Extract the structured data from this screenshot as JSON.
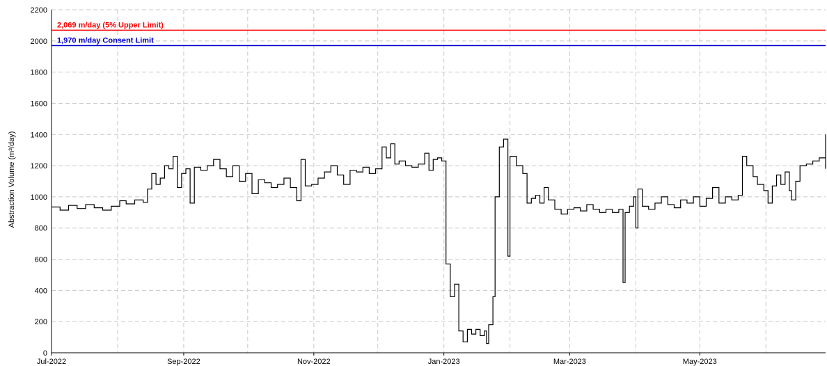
{
  "chart_data": {
    "type": "line",
    "ylabel": "Abstraction Volume (m³/day)",
    "ylim": [
      0,
      2200
    ],
    "yticks": [
      0,
      200,
      400,
      600,
      800,
      1000,
      1200,
      1400,
      1600,
      1800,
      2000,
      2200
    ],
    "xlim": [
      "2022-07-01",
      "2023-06-29"
    ],
    "xticks": [
      {
        "date": "2022-07-01",
        "label": "Jul-2022"
      },
      {
        "date": "2022-09-01",
        "label": "Sep-2022"
      },
      {
        "date": "2022-11-01",
        "label": "Nov-2022"
      },
      {
        "date": "2023-01-01",
        "label": "Jan-2023"
      },
      {
        "date": "2023-03-01",
        "label": "Mar-2023"
      },
      {
        "date": "2023-05-01",
        "label": "May-2023"
      }
    ],
    "grid": true,
    "grid_style": "dashed",
    "reference_lines": [
      {
        "value": 2069,
        "label": "2,069 m/day (5% Upper Limit)",
        "color": "#ff0000"
      },
      {
        "value": 1970,
        "label": "1,970 m/day Consent Limit",
        "color": "#0000cc"
      }
    ],
    "series": [
      {
        "color": "#000000",
        "step": true,
        "points": [
          [
            "2022-07-01",
            935
          ],
          [
            "2022-07-05",
            915
          ],
          [
            "2022-07-09",
            945
          ],
          [
            "2022-07-13",
            925
          ],
          [
            "2022-07-17",
            950
          ],
          [
            "2022-07-21",
            930
          ],
          [
            "2022-07-25",
            915
          ],
          [
            "2022-07-29",
            940
          ],
          [
            "2022-08-02",
            975
          ],
          [
            "2022-08-05",
            955
          ],
          [
            "2022-08-09",
            980
          ],
          [
            "2022-08-13",
            965
          ],
          [
            "2022-08-15",
            1050
          ],
          [
            "2022-08-17",
            1150
          ],
          [
            "2022-08-19",
            1080
          ],
          [
            "2022-08-21",
            1120
          ],
          [
            "2022-08-23",
            1200
          ],
          [
            "2022-08-25",
            1180
          ],
          [
            "2022-08-27",
            1260
          ],
          [
            "2022-08-29",
            1060
          ],
          [
            "2022-08-31",
            1150
          ],
          [
            "2022-09-02",
            1180
          ],
          [
            "2022-09-04",
            960
          ],
          [
            "2022-09-06",
            1190
          ],
          [
            "2022-09-09",
            1170
          ],
          [
            "2022-09-12",
            1200
          ],
          [
            "2022-09-15",
            1240
          ],
          [
            "2022-09-18",
            1180
          ],
          [
            "2022-09-21",
            1130
          ],
          [
            "2022-09-24",
            1200
          ],
          [
            "2022-09-27",
            1100
          ],
          [
            "2022-09-30",
            1150
          ],
          [
            "2022-10-03",
            1020
          ],
          [
            "2022-10-06",
            1110
          ],
          [
            "2022-10-09",
            1090
          ],
          [
            "2022-10-12",
            1060
          ],
          [
            "2022-10-15",
            1080
          ],
          [
            "2022-10-18",
            1120
          ],
          [
            "2022-10-21",
            1060
          ],
          [
            "2022-10-24",
            975
          ],
          [
            "2022-10-26",
            1240
          ],
          [
            "2022-10-28",
            1070
          ],
          [
            "2022-10-31",
            1080
          ],
          [
            "2022-11-03",
            1120
          ],
          [
            "2022-11-06",
            1160
          ],
          [
            "2022-11-09",
            1200
          ],
          [
            "2022-11-12",
            1140
          ],
          [
            "2022-11-15",
            1080
          ],
          [
            "2022-11-18",
            1170
          ],
          [
            "2022-11-21",
            1160
          ],
          [
            "2022-11-24",
            1190
          ],
          [
            "2022-11-27",
            1150
          ],
          [
            "2022-11-30",
            1180
          ],
          [
            "2022-12-03",
            1320
          ],
          [
            "2022-12-05",
            1250
          ],
          [
            "2022-12-07",
            1340
          ],
          [
            "2022-12-09",
            1210
          ],
          [
            "2022-12-11",
            1230
          ],
          [
            "2022-12-14",
            1200
          ],
          [
            "2022-12-17",
            1190
          ],
          [
            "2022-12-20",
            1210
          ],
          [
            "2022-12-23",
            1280
          ],
          [
            "2022-12-25",
            1170
          ],
          [
            "2022-12-27",
            1240
          ],
          [
            "2022-12-29",
            1250
          ],
          [
            "2022-12-31",
            1230
          ],
          [
            "2023-01-02",
            570
          ],
          [
            "2023-01-04",
            360
          ],
          [
            "2023-01-06",
            440
          ],
          [
            "2023-01-08",
            140
          ],
          [
            "2023-01-10",
            70
          ],
          [
            "2023-01-12",
            150
          ],
          [
            "2023-01-14",
            120
          ],
          [
            "2023-01-16",
            150
          ],
          [
            "2023-01-18",
            110
          ],
          [
            "2023-01-20",
            140
          ],
          [
            "2023-01-21",
            60
          ],
          [
            "2023-01-22",
            180
          ],
          [
            "2023-01-24",
            360
          ],
          [
            "2023-01-25",
            1000
          ],
          [
            "2023-01-27",
            1320
          ],
          [
            "2023-01-29",
            1370
          ],
          [
            "2023-01-31",
            620
          ],
          [
            "2023-02-01",
            1260
          ],
          [
            "2023-02-04",
            1200
          ],
          [
            "2023-02-07",
            1150
          ],
          [
            "2023-02-09",
            960
          ],
          [
            "2023-02-11",
            990
          ],
          [
            "2023-02-13",
            1010
          ],
          [
            "2023-02-15",
            960
          ],
          [
            "2023-02-17",
            1060
          ],
          [
            "2023-02-19",
            980
          ],
          [
            "2023-02-22",
            920
          ],
          [
            "2023-02-25",
            890
          ],
          [
            "2023-02-28",
            920
          ],
          [
            "2023-03-03",
            930
          ],
          [
            "2023-03-06",
            910
          ],
          [
            "2023-03-09",
            950
          ],
          [
            "2023-03-12",
            920
          ],
          [
            "2023-03-15",
            900
          ],
          [
            "2023-03-18",
            920
          ],
          [
            "2023-03-21",
            900
          ],
          [
            "2023-03-24",
            920
          ],
          [
            "2023-03-26",
            450
          ],
          [
            "2023-03-27",
            900
          ],
          [
            "2023-03-29",
            940
          ],
          [
            "2023-03-31",
            1000
          ],
          [
            "2023-04-01",
            800
          ],
          [
            "2023-04-02",
            1050
          ],
          [
            "2023-04-04",
            940
          ],
          [
            "2023-04-07",
            920
          ],
          [
            "2023-04-10",
            960
          ],
          [
            "2023-04-13",
            1000
          ],
          [
            "2023-04-16",
            950
          ],
          [
            "2023-04-19",
            930
          ],
          [
            "2023-04-22",
            980
          ],
          [
            "2023-04-25",
            960
          ],
          [
            "2023-04-28",
            1000
          ],
          [
            "2023-05-01",
            940
          ],
          [
            "2023-05-04",
            990
          ],
          [
            "2023-05-07",
            1060
          ],
          [
            "2023-05-10",
            960
          ],
          [
            "2023-05-13",
            1000
          ],
          [
            "2023-05-16",
            980
          ],
          [
            "2023-05-19",
            1010
          ],
          [
            "2023-05-21",
            1260
          ],
          [
            "2023-05-23",
            1200
          ],
          [
            "2023-05-26",
            1130
          ],
          [
            "2023-05-28",
            1080
          ],
          [
            "2023-05-31",
            1040
          ],
          [
            "2023-06-02",
            960
          ],
          [
            "2023-06-04",
            1070
          ],
          [
            "2023-06-06",
            1140
          ],
          [
            "2023-06-08",
            1080
          ],
          [
            "2023-06-10",
            1160
          ],
          [
            "2023-06-12",
            1040
          ],
          [
            "2023-06-13",
            980
          ],
          [
            "2023-06-15",
            1100
          ],
          [
            "2023-06-17",
            1200
          ],
          [
            "2023-06-20",
            1210
          ],
          [
            "2023-06-23",
            1230
          ],
          [
            "2023-06-26",
            1250
          ],
          [
            "2023-06-29",
            1220
          ],
          [
            "2023-07-01",
            1200
          ],
          [
            "2023-07-04",
            1260
          ],
          [
            "2023-07-07",
            1200
          ],
          [
            "2023-07-10",
            1180
          ],
          [
            "2023-07-12",
            1240
          ],
          [
            "2023-07-14",
            1400
          ]
        ]
      }
    ]
  }
}
